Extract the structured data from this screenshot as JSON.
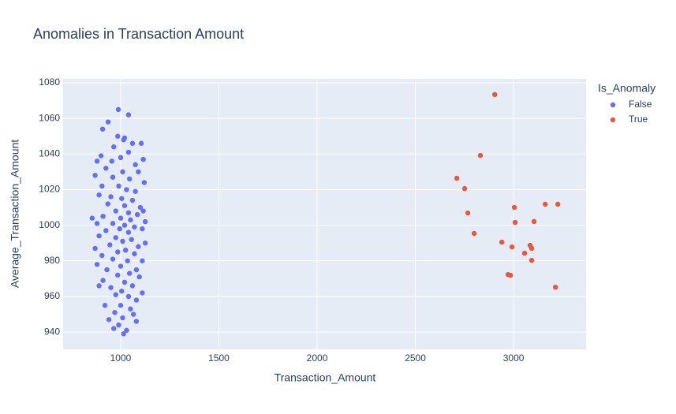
{
  "chart_data": {
    "type": "scatter",
    "title": "Anomalies in Transaction Amount",
    "x_label": "Transaction_Amount",
    "y_label": "Average_Transaction_Amount",
    "legend_title": "Is_Anomaly",
    "legend_position": "right",
    "grid": true,
    "xlim": [
      707,
      3369
    ],
    "ylim": [
      930.3,
      1082.2
    ],
    "xticks": [
      1000,
      1500,
      2000,
      2500,
      3000
    ],
    "yticks": [
      940,
      960,
      980,
      1000,
      1020,
      1040,
      1060,
      1080
    ],
    "series": [
      {
        "name": "False",
        "color": "#636efa",
        "x": [
          988,
          1040,
          936,
          908,
          1020,
          1060,
          985,
          1015,
          965,
          1105,
          900,
          880,
          1040,
          1115,
          955,
          1000,
          1075,
          925,
          1010,
          1090,
          870,
          960,
          1045,
          1120,
          905,
          990,
          1030,
          1075,
          890,
          950,
          1005,
          1060,
          935,
          1020,
          1100,
          1115,
          975,
          1040,
          1085,
          910,
          855,
          1000,
          1050,
          1125,
          880,
          960,
          1020,
          1070,
          995,
          1110,
          925,
          1040,
          890,
          975,
          1055,
          1125,
          1010,
          945,
          1090,
          870,
          1025,
          985,
          1070,
          905,
          960,
          1035,
          1110,
          880,
          1000,
          1080,
          930,
          1045,
          985,
          1095,
          910,
          1020,
          1060,
          950,
          890,
          1005,
          1110,
          975,
          1040,
          1080,
          920,
          1000,
          1050,
          970,
          1065,
          1010,
          940,
          1080,
          990,
          965,
          1030,
          1015
        ],
        "y": [
          1065,
          1062,
          1058,
          1054,
          1049,
          1046,
          1050,
          1048,
          1044,
          1046,
          1039,
          1036,
          1041,
          1037,
          1036,
          1038,
          1034,
          1032,
          1030,
          1030,
          1028,
          1027,
          1026,
          1024,
          1022,
          1022,
          1020,
          1019,
          1017,
          1016,
          1015,
          1014,
          1012,
          1011,
          1010,
          1008,
          1008,
          1007,
          1006,
          1005,
          1004,
          1004,
          1003,
          1002,
          1001,
          1001,
          1000,
          999,
          998,
          998,
          997,
          996,
          994,
          993,
          992,
          990,
          991,
          989,
          988,
          987,
          986,
          985,
          984,
          983,
          981,
          980,
          980,
          978,
          977,
          975,
          975,
          973,
          972,
          971,
          969,
          968,
          966,
          965,
          966,
          963,
          962,
          961,
          960,
          958,
          955,
          955,
          953,
          951,
          950,
          948,
          947,
          946,
          944,
          942,
          941,
          939
        ]
      },
      {
        "name": "True",
        "color": "#EF553B",
        "x": [
          2904,
          2831,
          2711,
          2751,
          2767,
          2799,
          3004,
          3008,
          3161,
          3225,
          3104,
          2940,
          2992,
          3084,
          3092,
          3056,
          3092,
          2972,
          2984,
          3213
        ],
        "y": [
          1073.4,
          1039.2,
          1026.4,
          1020.6,
          1006.9,
          995.4,
          1010.0,
          1001.6,
          1011.8,
          1011.8,
          1002.1,
          990.5,
          987.8,
          988.7,
          987.0,
          984.3,
          980.3,
          972.3,
          971.9,
          965.2
        ]
      }
    ]
  }
}
